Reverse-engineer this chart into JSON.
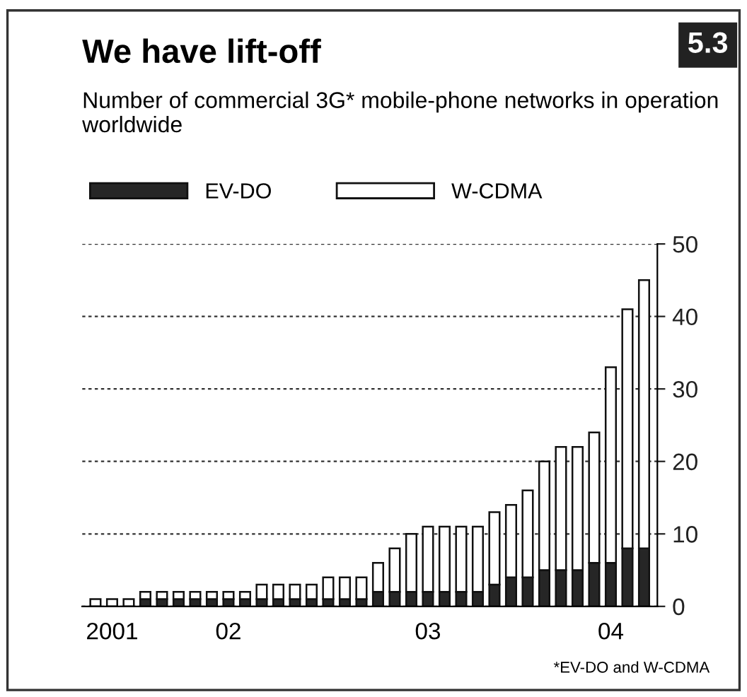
{
  "chart_data": {
    "type": "bar",
    "title": "We have lift-off",
    "subtitle": "Number of commercial 3G* mobile-phone networks in operation worldwide",
    "categories": [
      null,
      "2001",
      null,
      null,
      null,
      null,
      null,
      null,
      "02",
      null,
      null,
      null,
      null,
      null,
      null,
      null,
      null,
      null,
      null,
      null,
      "03",
      null,
      null,
      null,
      null,
      null,
      null,
      null,
      null,
      null,
      null,
      "04",
      null,
      null
    ],
    "stacked": true,
    "series": [
      {
        "name": "EV-DO",
        "color": "#262626",
        "values": [
          0,
          0,
          0,
          1,
          1,
          1,
          1,
          1,
          1,
          1,
          1,
          1,
          1,
          1,
          1,
          1,
          1,
          2,
          2,
          2,
          2,
          2,
          2,
          2,
          3,
          4,
          4,
          5,
          5,
          5,
          6,
          6,
          8,
          8
        ]
      },
      {
        "name": "W-CDMA",
        "color": "#ffffff",
        "values": [
          1,
          1,
          1,
          1,
          1,
          1,
          1,
          1,
          1,
          1,
          2,
          2,
          2,
          2,
          3,
          3,
          3,
          4,
          6,
          8,
          9,
          9,
          9,
          9,
          10,
          10,
          12,
          15,
          17,
          17,
          18,
          27,
          33,
          37
        ]
      }
    ],
    "ylim": [
      0,
      50
    ],
    "yticks": [
      0,
      10,
      20,
      30,
      40,
      50
    ],
    "grid": "y",
    "legend": "top left",
    "annotations": [
      "5.3",
      "*EV-DO and W-CDMA"
    ]
  }
}
